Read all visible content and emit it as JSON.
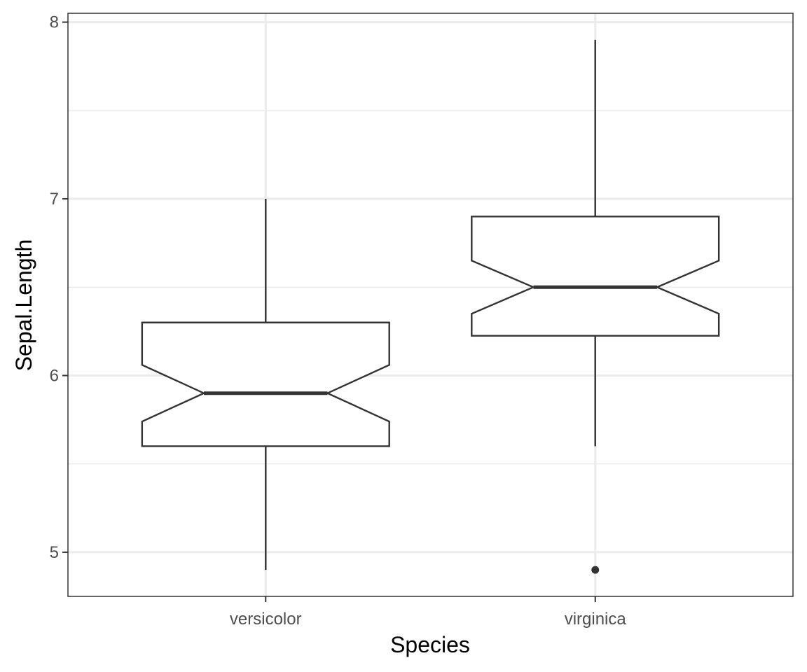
{
  "chart_data": {
    "type": "boxplot",
    "notched": true,
    "title": "",
    "xlabel": "Species",
    "ylabel": "Sepal.Length",
    "categories": [
      "versicolor",
      "virginica"
    ],
    "boxes": [
      {
        "category": "versicolor",
        "whisker_low": 4.9,
        "q1": 5.6,
        "median": 5.9,
        "q3": 6.3,
        "whisker_high": 7.0,
        "notch_low": 5.74,
        "notch_high": 6.06,
        "outliers": []
      },
      {
        "category": "virginica",
        "whisker_low": 5.6,
        "q1": 6.225,
        "median": 6.5,
        "q3": 6.9,
        "whisker_high": 7.9,
        "notch_low": 6.35,
        "notch_high": 6.65,
        "outliers": [
          4.9
        ]
      }
    ],
    "ylim": [
      4.75,
      8.05
    ],
    "yticks": [
      5,
      6,
      7,
      8
    ],
    "grid": true,
    "legend": "none"
  },
  "colors": {
    "grid": "#ebebeb",
    "box_line": "#333333",
    "median": "#333333",
    "outlier": "#333333",
    "panel_border": "#333333",
    "tick_label": "#4d4d4d",
    "axis_title": "#000000"
  }
}
